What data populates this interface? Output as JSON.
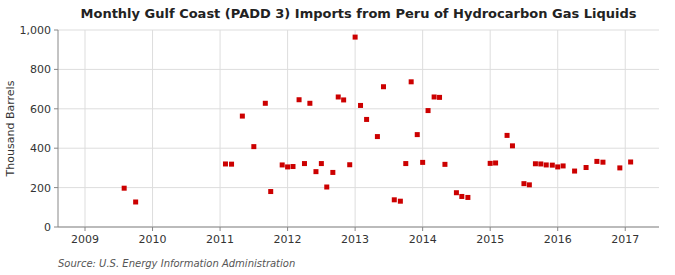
{
  "chart_data": {
    "type": "scatter",
    "title": "Monthly Gulf Coast (PADD 3) Imports from Peru of Hydrocarbon Gas Liquids",
    "y_label": "Thousand Barrels",
    "annotation": "Source: U.S. Energy Information Administration",
    "color": "#cc0000",
    "marker": "square",
    "grid": true,
    "xlim": [
      2008.6,
      2017.5
    ],
    "xticks": [
      2009,
      2010,
      2011,
      2012,
      2013,
      2014,
      2015,
      2016,
      2017
    ],
    "ylim": [
      0,
      1000
    ],
    "yticks": [
      0,
      200,
      400,
      600,
      800,
      {
        "value": 1000,
        "label": "1,000"
      }
    ],
    "x": [
      2009.58,
      2009.75,
      2011.08,
      2011.17,
      2011.33,
      2011.5,
      2011.67,
      2011.75,
      2011.92,
      2012.0,
      2012.08,
      2012.17,
      2012.25,
      2012.33,
      2012.42,
      2012.5,
      2012.58,
      2012.67,
      2012.75,
      2012.83,
      2012.92,
      2013.0,
      2013.08,
      2013.17,
      2013.33,
      2013.42,
      2013.58,
      2013.67,
      2013.75,
      2013.83,
      2013.92,
      2014.0,
      2014.08,
      2014.17,
      2014.25,
      2014.33,
      2014.5,
      2014.58,
      2014.67,
      2015.0,
      2015.08,
      2015.25,
      2015.33,
      2015.5,
      2015.58,
      2015.67,
      2015.75,
      2015.83,
      2015.92,
      2016.0,
      2016.08,
      2016.25,
      2016.42,
      2016.58,
      2016.67,
      2016.92,
      2017.08
    ],
    "values": [
      197,
      127,
      320,
      319,
      563,
      408,
      628,
      180,
      315,
      305,
      307,
      646,
      322,
      628,
      281,
      322,
      203,
      277,
      660,
      645,
      316,
      964,
      617,
      546,
      459,
      712,
      138,
      131,
      322,
      737,
      469,
      328,
      591,
      660,
      658,
      318,
      174,
      155,
      150,
      323,
      325,
      465,
      412,
      220,
      214,
      321,
      320,
      315,
      314,
      305,
      310,
      284,
      302,
      333,
      329,
      300,
      330
    ]
  }
}
